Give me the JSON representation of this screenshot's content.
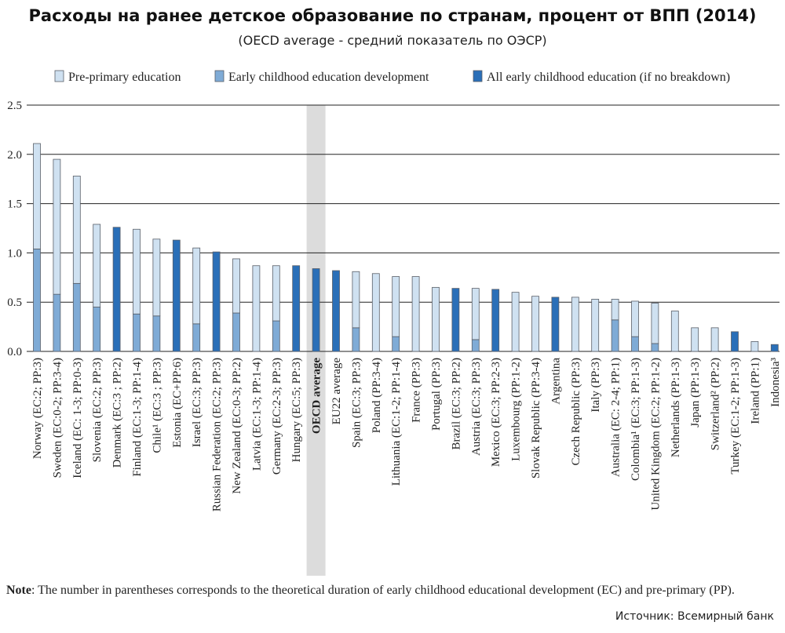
{
  "title": "Расходы на ранее детское образование по странам, процент от ВПП (2014)",
  "subtitle": "(OECD average - средний показатель по ОЭСР)",
  "note_label": "Note",
  "note_text": ": The number in parentheses corresponds to the theoretical duration of early childhood educational development (EC) and pre-primary (PP).",
  "source": "Источник: Всемирный банк",
  "colors": {
    "pre_primary": "#cfe1f1",
    "early_childhood": "#7fabd6",
    "all_early": "#2a6fb8",
    "bar_stroke": "#5a5f68",
    "highlight": "#dcdcdc"
  },
  "chart_data": {
    "type": "bar",
    "stacked": true,
    "legend": [
      {
        "key": "ec",
        "label": "Early childhood education development"
      },
      {
        "key": "pp",
        "label": "Pre-primary education"
      },
      {
        "key": "all",
        "label": "All early childhood education (if no breakdown)"
      }
    ],
    "legend_order": [
      "pp",
      "ec",
      "all"
    ],
    "legend_position": "top",
    "ylim": [
      0,
      2.5
    ],
    "yticks": [
      "0.0",
      "0.5",
      "1.0",
      "1.5",
      "2.0",
      "2.5"
    ],
    "grid": true,
    "highlighted_category": "OECD average",
    "categories": [
      "Norway (EC:2; PP:3)",
      "Sweden (EC:0-2; PP:3-4)",
      "Iceland (EC: 1-3; PP:0-3)",
      "Slovenia (EC:2; PP:3)",
      "Denmark (EC:3 ; PP:2)",
      "Finland (EC:1-3; PP:1-4)",
      "Chile¹ (EC:3 ; PP:3)",
      "Estonia (EC+PP:6)",
      "Israel (EC:3; PP:3)",
      "Russian Federation (EC:2; PP:3)",
      "New Zealand (EC:0-3; PP:2)",
      "Latvia (EC:1-3; PP:1-4)",
      "Germany (EC:2-3; PP:3)",
      "Hungary (EC:5; PP:3)",
      "OECD average",
      "EU22 average",
      "Spain (EC:3; PP:3)",
      "Poland (PP:3-4)",
      "Lithuania (EC:1-2; PP:1-4)",
      "France (PP:3)",
      "Portugal (PP:3)",
      "Brazil (EC:3; PP:2)",
      "Austria (EC:3; PP:3)",
      "Mexico (EC:3; PP:2-3)",
      "Luxembourg (PP:1-2)",
      "Slovak Republic (PP:3-4)",
      "Argentina",
      "Czech Republic (PP:3)",
      "Italy (PP:3)",
      "Australia (EC: 2-4; PP:1)",
      "Colombia¹ (EC:3; PP:1-3)",
      "United Kingdom (EC:2; PP:1-2)",
      "Netherlands (PP:1-3)",
      "Japan (PP:1-3)",
      "Switzerland² (PP:2)",
      "Turkey (EC:1-2; PP:1-3)",
      "Ireland (PP:1)",
      "Indonesia³"
    ],
    "series": [
      {
        "name": "Early childhood education development",
        "key": "ec",
        "values": [
          1.04,
          0.58,
          0.69,
          0.45,
          0,
          0.38,
          0.36,
          0,
          0.28,
          0,
          0.39,
          0,
          0.31,
          0,
          0,
          0,
          0.24,
          0,
          0.15,
          0,
          0,
          0,
          0.12,
          0,
          0,
          0,
          0,
          0,
          0,
          0.32,
          0.15,
          0.08,
          0,
          0,
          0,
          0,
          0,
          0
        ]
      },
      {
        "name": "Pre-primary education",
        "key": "pp",
        "values": [
          1.07,
          1.37,
          1.09,
          0.84,
          0,
          0.86,
          0.78,
          0,
          0.77,
          0,
          0.55,
          0.87,
          0.56,
          0,
          0,
          0,
          0.57,
          0.79,
          0.61,
          0.76,
          0.65,
          0,
          0.52,
          0,
          0.6,
          0.56,
          0,
          0.55,
          0.53,
          0.21,
          0.36,
          0.41,
          0.41,
          0.24,
          0.24,
          0,
          0.1,
          0
        ]
      },
      {
        "name": "All early childhood education (if no breakdown)",
        "key": "all",
        "values": [
          0,
          0,
          0,
          0,
          1.26,
          0,
          0,
          1.13,
          0,
          1.01,
          0,
          0,
          0,
          0.87,
          0.84,
          0.82,
          0,
          0,
          0,
          0,
          0,
          0.64,
          0,
          0.63,
          0,
          0,
          0.55,
          0,
          0,
          0,
          0,
          0,
          0,
          0,
          0,
          0.2,
          0,
          0.07
        ]
      }
    ]
  }
}
